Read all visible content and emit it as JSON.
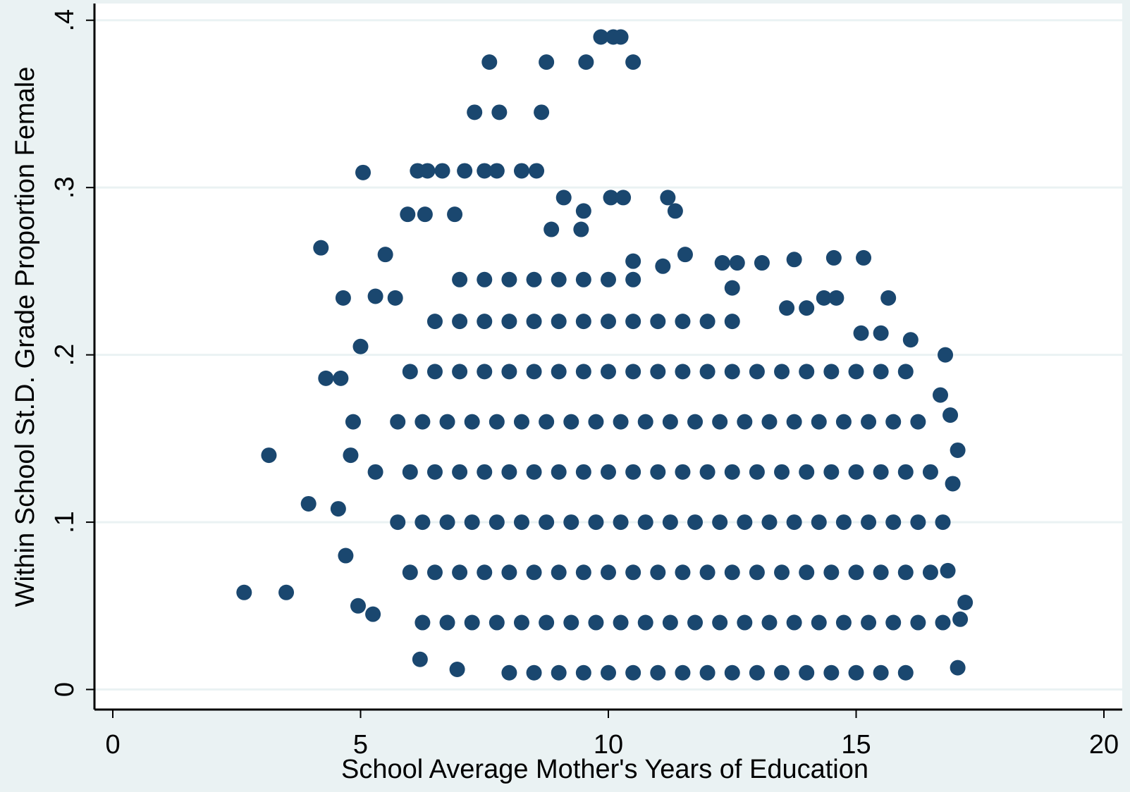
{
  "chart_data": {
    "type": "scatter",
    "xlabel": "School Average Mother's Years of Education",
    "ylabel": "Within School St.D. Grade Proportion Female",
    "xlim": [
      -0.37,
      20.37
    ],
    "ylim": [
      -0.012,
      0.41
    ],
    "xticks": [
      0,
      5,
      10,
      15,
      20
    ],
    "yticks": [
      0,
      {
        "value": 0.1,
        "label": ".1"
      },
      {
        "value": 0.2,
        "label": ".2"
      },
      {
        "value": 0.3,
        "label": ".3"
      },
      {
        "value": 0.4,
        "label": ".4"
      }
    ],
    "grid": true,
    "series": [
      {
        "color": "#1a476f",
        "x": [
          2.65,
          3.5,
          3.15,
          3.95,
          4.55,
          4.2,
          4.8,
          4.85,
          4.65,
          4.3,
          4.6,
          4.7,
          5.05,
          4.95,
          5.25,
          5.0,
          5.3,
          5.5,
          5.3,
          5.7,
          5.95,
          6.15,
          6.35,
          6.3,
          6.65,
          6.9,
          7.3,
          7.6,
          7.8,
          7.1,
          7.5,
          7.75,
          8.25,
          8.55,
          8.65,
          8.75,
          9.55,
          9.85,
          10.1,
          10.25,
          10.5,
          9.1,
          9.5,
          8.85,
          9.45,
          10.05,
          10.3,
          11.2,
          11.35,
          10.5,
          11.55,
          11.1,
          12.3,
          12.6,
          13.1,
          13.75,
          14.55,
          15.15,
          12.5,
          13.6,
          14.0,
          14.35,
          14.6,
          15.65,
          15.1,
          15.5,
          16.1,
          16.8,
          16.7,
          16.9,
          17.05,
          16.95,
          16.85,
          17.2,
          17.1,
          17.05,
          6.2,
          6.95,
          8,
          8.5,
          9,
          9.5,
          10,
          10.5,
          11,
          11.5,
          12,
          12.5,
          13,
          13.5,
          14,
          14.5,
          15,
          15.5,
          16,
          6.25,
          6.75,
          7.25,
          7.75,
          8.25,
          8.75,
          9.25,
          9.75,
          10.25,
          10.75,
          11.25,
          11.75,
          12.25,
          12.75,
          13.25,
          13.75,
          14.25,
          14.75,
          15.25,
          15.75,
          16.25,
          16.75,
          6,
          6.5,
          7,
          7.5,
          8,
          8.5,
          9,
          9.5,
          10,
          10.5,
          11,
          11.5,
          12,
          12.5,
          13,
          13.5,
          14,
          14.5,
          15,
          15.5,
          16,
          16.5,
          5.75,
          6.25,
          6.75,
          7.25,
          7.75,
          8.25,
          8.75,
          9.25,
          9.75,
          10.25,
          10.75,
          11.25,
          11.75,
          12.25,
          12.75,
          13.25,
          13.75,
          14.25,
          14.75,
          15.25,
          15.75,
          16.25,
          16.75,
          6,
          6.5,
          7,
          7.5,
          8,
          8.5,
          9,
          9.5,
          10,
          10.5,
          11,
          11.5,
          12,
          12.5,
          13,
          13.5,
          14,
          14.5,
          15,
          15.5,
          16,
          16.5,
          5.75,
          6.25,
          6.75,
          7.25,
          7.75,
          8.25,
          8.75,
          9.25,
          9.75,
          10.25,
          10.75,
          11.25,
          11.75,
          12.25,
          12.75,
          13.25,
          13.75,
          14.25,
          14.75,
          15.25,
          15.75,
          16.25,
          6,
          6.5,
          7,
          7.5,
          8,
          8.5,
          9,
          9.5,
          10,
          10.5,
          11,
          11.5,
          12,
          12.5,
          13,
          13.5,
          14,
          14.5,
          15,
          15.5,
          16,
          6.5,
          7,
          7.5,
          8,
          8.5,
          9,
          9.5,
          10,
          10.5,
          11,
          11.5,
          12,
          12.5,
          7,
          7.5,
          8,
          8.5,
          9,
          9.5,
          10,
          10.5
        ],
        "values": [
          0.058,
          0.058,
          0.14,
          0.111,
          0.108,
          0.264,
          0.14,
          0.16,
          0.234,
          0.186,
          0.186,
          0.08,
          0.309,
          0.05,
          0.045,
          0.205,
          0.13,
          0.26,
          0.235,
          0.234,
          0.284,
          0.31,
          0.31,
          0.284,
          0.31,
          0.284,
          0.345,
          0.375,
          0.345,
          0.31,
          0.31,
          0.31,
          0.31,
          0.31,
          0.345,
          0.375,
          0.375,
          0.39,
          0.39,
          0.39,
          0.375,
          0.294,
          0.286,
          0.275,
          0.275,
          0.294,
          0.294,
          0.294,
          0.286,
          0.256,
          0.26,
          0.253,
          0.255,
          0.255,
          0.255,
          0.257,
          0.258,
          0.258,
          0.24,
          0.228,
          0.228,
          0.234,
          0.234,
          0.234,
          0.213,
          0.213,
          0.209,
          0.2,
          0.176,
          0.164,
          0.143,
          0.123,
          0.071,
          0.052,
          0.042,
          0.013,
          0.018,
          0.012,
          0.01,
          0.01,
          0.01,
          0.01,
          0.01,
          0.01,
          0.01,
          0.01,
          0.01,
          0.01,
          0.01,
          0.01,
          0.01,
          0.01,
          0.01,
          0.01,
          0.01,
          0.04,
          0.04,
          0.04,
          0.04,
          0.04,
          0.04,
          0.04,
          0.04,
          0.04,
          0.04,
          0.04,
          0.04,
          0.04,
          0.04,
          0.04,
          0.04,
          0.04,
          0.04,
          0.04,
          0.04,
          0.04,
          0.04,
          0.07,
          0.07,
          0.07,
          0.07,
          0.07,
          0.07,
          0.07,
          0.07,
          0.07,
          0.07,
          0.07,
          0.07,
          0.07,
          0.07,
          0.07,
          0.07,
          0.07,
          0.07,
          0.07,
          0.07,
          0.07,
          0.07,
          0.1,
          0.1,
          0.1,
          0.1,
          0.1,
          0.1,
          0.1,
          0.1,
          0.1,
          0.1,
          0.1,
          0.1,
          0.1,
          0.1,
          0.1,
          0.1,
          0.1,
          0.1,
          0.1,
          0.1,
          0.1,
          0.1,
          0.1,
          0.13,
          0.13,
          0.13,
          0.13,
          0.13,
          0.13,
          0.13,
          0.13,
          0.13,
          0.13,
          0.13,
          0.13,
          0.13,
          0.13,
          0.13,
          0.13,
          0.13,
          0.13,
          0.13,
          0.13,
          0.13,
          0.13,
          0.16,
          0.16,
          0.16,
          0.16,
          0.16,
          0.16,
          0.16,
          0.16,
          0.16,
          0.16,
          0.16,
          0.16,
          0.16,
          0.16,
          0.16,
          0.16,
          0.16,
          0.16,
          0.16,
          0.16,
          0.16,
          0.16,
          0.19,
          0.19,
          0.19,
          0.19,
          0.19,
          0.19,
          0.19,
          0.19,
          0.19,
          0.19,
          0.19,
          0.19,
          0.19,
          0.19,
          0.19,
          0.19,
          0.19,
          0.19,
          0.19,
          0.19,
          0.19,
          0.22,
          0.22,
          0.22,
          0.22,
          0.22,
          0.22,
          0.22,
          0.22,
          0.22,
          0.22,
          0.22,
          0.22,
          0.22,
          0.245,
          0.245,
          0.245,
          0.245,
          0.245,
          0.245,
          0.245,
          0.245
        ]
      }
    ]
  }
}
